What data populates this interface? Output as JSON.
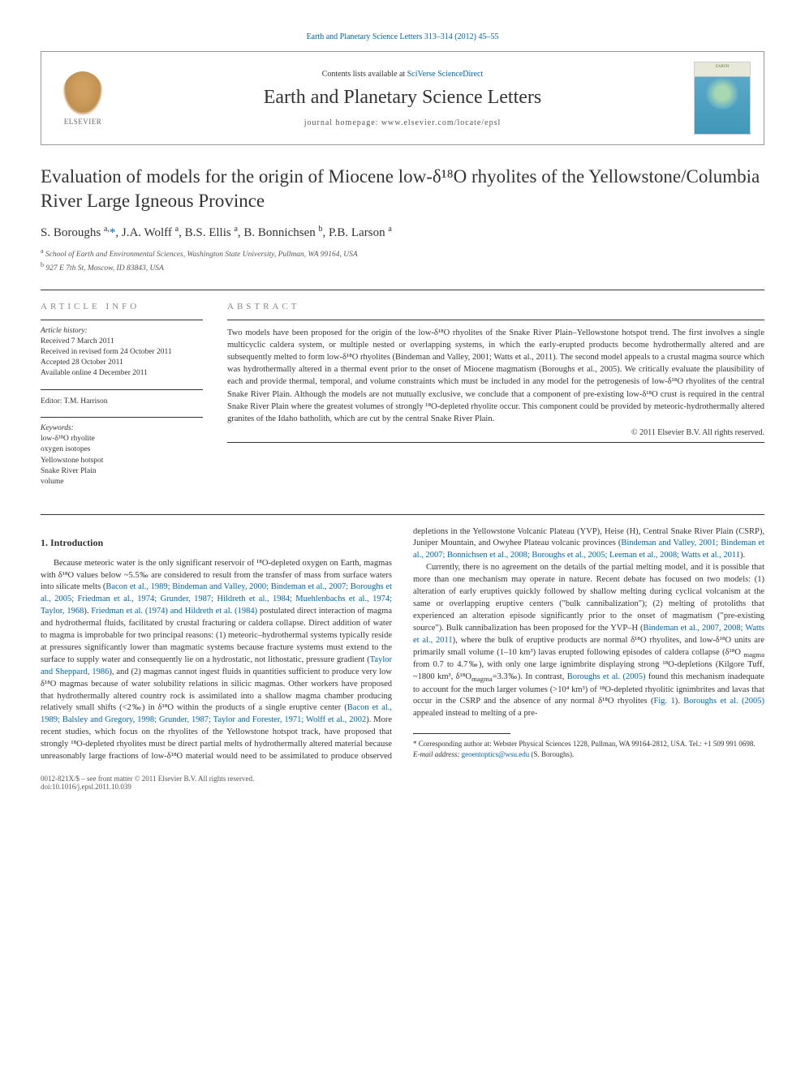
{
  "top_link": "Earth and Planetary Science Letters 313–314 (2012) 45–55",
  "header": {
    "contents_text": "Contents lists available at ",
    "contents_link": "SciVerse ScienceDirect",
    "journal_name": "Earth and Planetary Science Letters",
    "homepage": "journal homepage: www.elsevier.com/locate/epsl",
    "elsevier_label": "ELSEVIER",
    "cover_label": "EARTH"
  },
  "title": "Evaluation of models for the origin of Miocene low-δ¹⁸O rhyolites of the Yellowstone/Columbia River Large Igneous Province",
  "authors_html": "S. Boroughs <sup>a,</sup><a href=\"#\">*</a>, J.A. Wolff <sup>a</sup>, B.S. Ellis <sup>a</sup>, B. Bonnichsen <sup>b</sup>, P.B. Larson <sup>a</sup>",
  "affiliations": {
    "a": "School of Earth and Environmental Sciences, Washington State University, Pullman, WA 99164, USA",
    "b": "927 E 7th St, Moscow, ID 83843, USA"
  },
  "article_info": {
    "heading": "ARTICLE INFO",
    "history_label": "Article history:",
    "history": [
      "Received 7 March 2011",
      "Received in revised form 24 October 2011",
      "Accepted 28 October 2011",
      "Available online 4 December 2011"
    ],
    "editor_label": "Editor: T.M. Harrison",
    "keywords_label": "Keywords:",
    "keywords": [
      "low-δ¹⁸O rhyolite",
      "oxygen isotopes",
      "Yellowstone hotspot",
      "Snake River Plain",
      "volume"
    ]
  },
  "abstract": {
    "heading": "ABSTRACT",
    "text": "Two models have been proposed for the origin of the low-δ¹⁸O rhyolites of the Snake River Plain–Yellowstone hotspot trend. The first involves a single multicyclic caldera system, or multiple nested or overlapping systems, in which the early-erupted products become hydrothermally altered and are subsequently melted to form low-δ¹⁸O rhyolites (Bindeman and Valley, 2001; Watts et al., 2011). The second model appeals to a crustal magma source which was hydrothermally altered in a thermal event prior to the onset of Miocene magmatism (Boroughs et al., 2005). We critically evaluate the plausibility of each and provide thermal, temporal, and volume constraints which must be included in any model for the petrogenesis of low-δ¹⁸O rhyolites of the central Snake River Plain. Although the models are not mutually exclusive, we conclude that a component of pre-existing low-δ¹⁸O crust is required in the central Snake River Plain where the greatest volumes of strongly ¹⁸O-depleted rhyolite occur. This component could be provided by meteoric-hydrothermally altered granites of the Idaho batholith, which are cut by the central Snake River Plain.",
    "copyright": "© 2011 Elsevier B.V. All rights reserved."
  },
  "intro": {
    "heading": "1. Introduction",
    "p1_pre": "Because meteoric water is the only significant reservoir of ¹⁸O-depleted oxygen on Earth, magmas with δ¹⁸O values below ~5.5‰ are considered to result from the transfer of mass from surface waters into silicate melts (",
    "p1_link1": "Bacon et al., 1989; Bindeman and Valley, 2000; Bindeman et al., 2007; Boroughs et al., 2005; Friedman et al., 1974; Grunder, 1987; Hildreth et al., 1984; Muehlenbachs et al., 1974; Taylor, 1968",
    "p1_mid1": "). ",
    "p1_link2": "Friedman et al. (1974) and Hildreth et al. (1984)",
    "p1_mid2": " postulated direct interaction of magma and hydrothermal fluids, facilitated by crustal fracturing or caldera collapse. Direct addition of water to magma is improbable for two principal reasons: (1) meteoric–hydrothermal systems typically reside at pressures significantly lower than magmatic systems because fracture systems must extend to the surface to supply water and consequently lie on a hydrostatic, not lithostatic, pressure gradient (",
    "p1_link3": "Taylor and Sheppard, 1986",
    "p1_mid3": "), and (2) magmas cannot ingest fluids in quantities sufficient to produce very low δ¹⁸O magmas because of water solubility relations in silicic magmas. Other workers have proposed that hydrothermally altered country rock is assimilated into a shallow magma chamber producing relatively small shifts (<2‰) in δ¹⁸O within the products of a single eruptive center (",
    "p1_link4": "Bacon et al., 1989; Balsley and Gregory, 1998; Grunder, 1987; Taylor and Forester, 1971; Wolff et al., 2002",
    "p1_post": "). More recent studies, which focus on the rhyolites of the Yellowstone hotspot track, have proposed that strongly ¹⁸O-depleted rhyolites must be direct partial melts of hydrothermally altered material because unreasonably large fractions of low-δ¹⁸O material would need to be assimilated to produce observed depletions in the Yellowstone Volcanic Plateau (YVP), Heise (H), Central Snake River Plain (CSRP), Juniper Mountain, and Owyhee Plateau volcanic provinces (",
    "p1_link5": "Bindeman and Valley, 2001; Bindeman et al., 2007; Bonnichsen et al., 2008; Boroughs et al., 2005; Leeman et al., 2008; Watts et al., 2011",
    "p1_end": ").",
    "p2_pre": "Currently, there is no agreement on the details of the partial melting model, and it is possible that more than one mechanism may operate in nature. Recent debate has focused on two models: (1) alteration of early eruptives quickly followed by shallow melting during cyclical volcanism at the same or overlapping eruptive centers (\"bulk cannibalization\"); (2) melting of protoliths that experienced an alteration episode significantly prior to the onset of magmatism (\"pre-existing source\"). Bulk cannibalization has been proposed for the YVP–H (",
    "p2_link1": "Bindeman et al., 2007, 2008; Watts et al., 2011",
    "p2_mid1": "), where the bulk of eruptive products are normal δ¹⁸O rhyolites, and low-δ¹⁸O units are primarily small volume (1–10 km³) lavas erupted following episodes of caldera collapse (δ¹⁸O ",
    "p2_sub1": "magma",
    "p2_mid2": " from 0.7 to 4.7‰), with only one large ignimbrite displaying strong ¹⁸O-depletions (Kilgore Tuff, ~1800 km³, δ¹⁸O",
    "p2_sub2": "magma",
    "p2_mid3": "=3.3‰). In contrast, ",
    "p2_link2": "Boroughs et al. (2005)",
    "p2_mid4": " found this mechanism inadequate to account for the much larger volumes (>10⁴ km³) of ¹⁸O-depleted rhyolitic ignimbrites and lavas that occur in the CSRP and the absence of any normal δ¹⁸O rhyolites (",
    "p2_link3": "Fig. 1",
    "p2_mid5": "). ",
    "p2_link4": "Boroughs et al. (2005)",
    "p2_end": " appealed instead to melting of a pre-"
  },
  "footnote": {
    "corr": "* Corresponding author at: Webster Physical Sciences 1228, Pullman, WA 99164-2812, USA. Tel.: +1 509 991 0698.",
    "email_label": "E-mail address: ",
    "email": "geoentoptics@wsu.edu",
    "email_post": " (S. Boroughs)."
  },
  "footer": {
    "left1": "0012-821X/$ – see front matter © 2011 Elsevier B.V. All rights reserved.",
    "left2": "doi:10.1016/j.epsl.2011.10.039"
  }
}
